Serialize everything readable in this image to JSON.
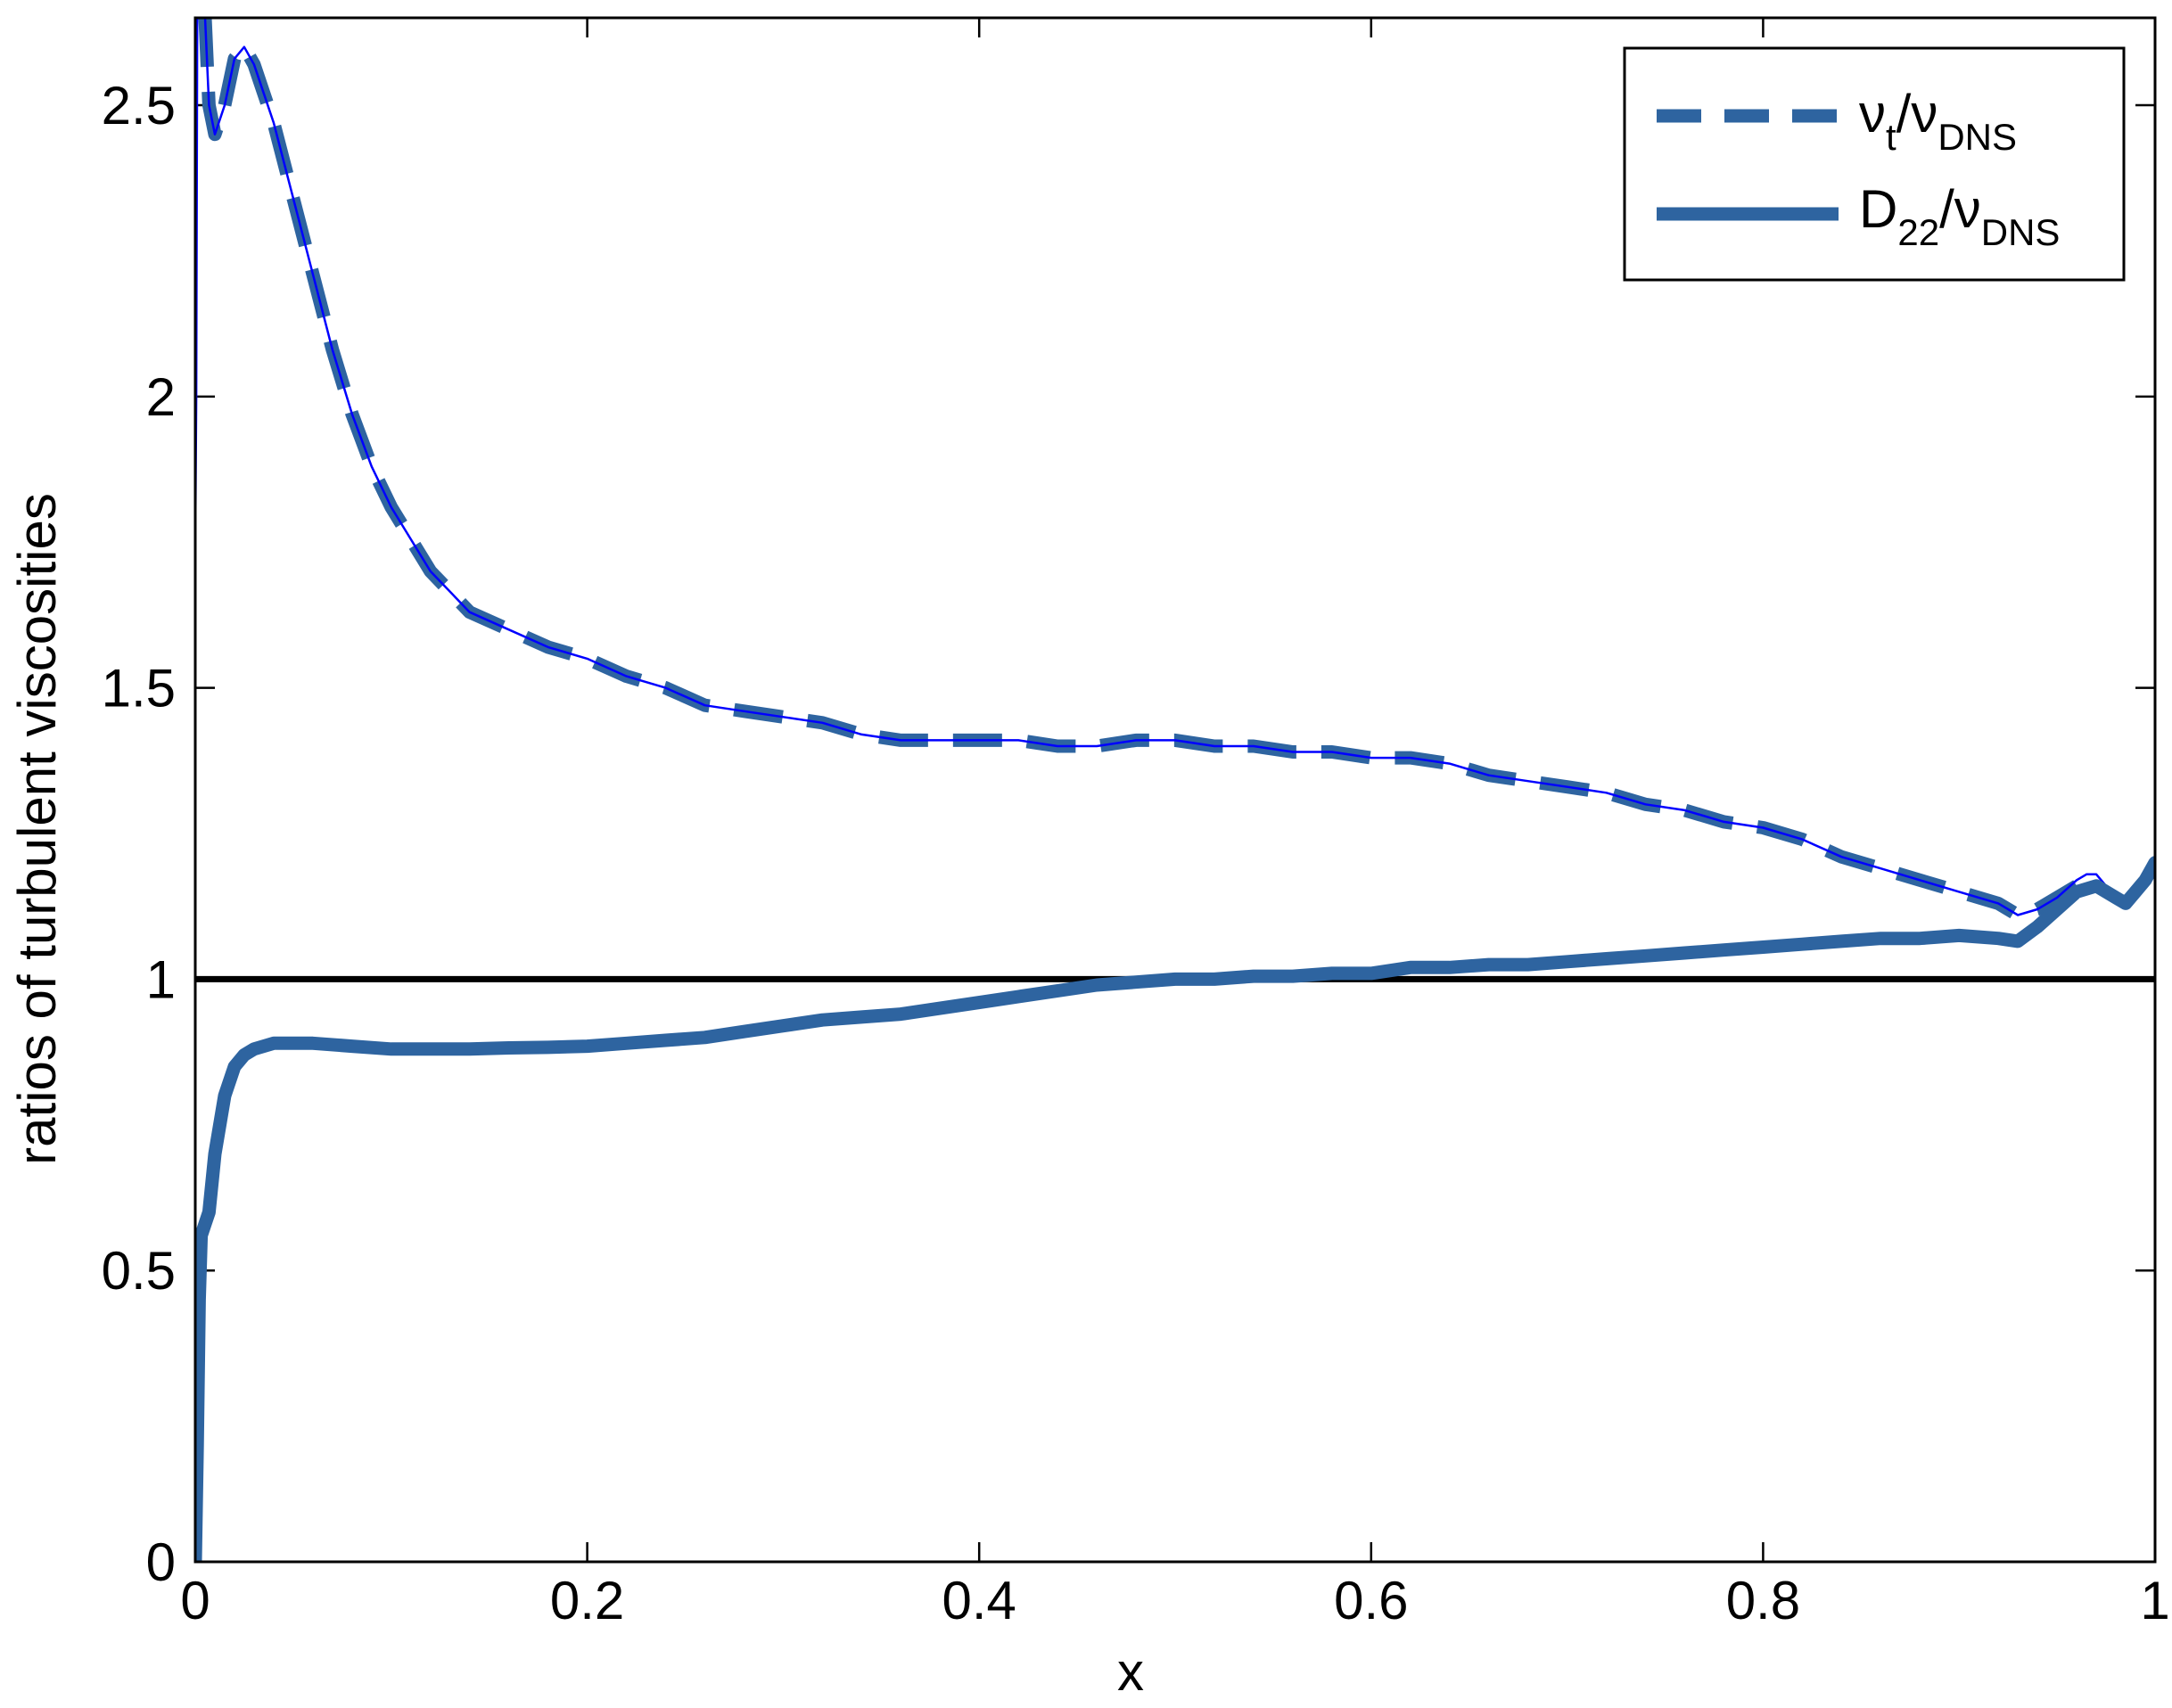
{
  "chart_data": {
    "type": "line",
    "xlabel": "x",
    "ylabel": "ratios of turbulent viscosities",
    "xlim": [
      0,
      1
    ],
    "ylim": [
      0,
      2.65
    ],
    "x_ticks": [
      0,
      0.2,
      0.4,
      0.6,
      0.8,
      1
    ],
    "x_tick_labels": [
      "0",
      "0.2",
      "0.4",
      "0.6",
      "0.8",
      "1"
    ],
    "y_ticks": [
      0,
      0.5,
      1,
      1.5,
      2,
      2.5
    ],
    "y_tick_labels": [
      "0",
      "0.5",
      "1",
      "1.5",
      "2",
      "2.5"
    ],
    "grid": false,
    "legend_position": "top-right",
    "legend": [
      {
        "base": "ν",
        "sub1": "t",
        "slash": "/",
        "base2": "ν",
        "sub2": "DNS",
        "style": "dashed"
      },
      {
        "base": "D",
        "sub1": "22",
        "slash": "/",
        "base2": "ν",
        "sub2": "DNS",
        "style": "solid"
      }
    ],
    "reference_line": {
      "y": 1,
      "color": "#000000"
    },
    "series": [
      {
        "style": "dashed",
        "color": "#2e64a0",
        "x": [
          0.005,
          0.007,
          0.01,
          0.015,
          0.02,
          0.025,
          0.03,
          0.04,
          0.05,
          0.06,
          0.07,
          0.08,
          0.09,
          0.1,
          0.12,
          0.14,
          0.16,
          0.18,
          0.2,
          0.22,
          0.24,
          0.26,
          0.28,
          0.3,
          0.32,
          0.34,
          0.36,
          0.38,
          0.4,
          0.42,
          0.44,
          0.46,
          0.48,
          0.5,
          0.52,
          0.54,
          0.56,
          0.58,
          0.6,
          0.62,
          0.64,
          0.66,
          0.68,
          0.7,
          0.72,
          0.74,
          0.76,
          0.78,
          0.8,
          0.82,
          0.84,
          0.86,
          0.88,
          0.9,
          0.92,
          0.93,
          0.94,
          0.95,
          0.96
        ],
        "y": [
          2.65,
          2.5,
          2.45,
          2.5,
          2.58,
          2.6,
          2.57,
          2.47,
          2.34,
          2.21,
          2.08,
          1.97,
          1.88,
          1.81,
          1.7,
          1.63,
          1.6,
          1.57,
          1.55,
          1.52,
          1.5,
          1.47,
          1.46,
          1.45,
          1.44,
          1.42,
          1.41,
          1.41,
          1.41,
          1.41,
          1.4,
          1.4,
          1.41,
          1.41,
          1.4,
          1.4,
          1.39,
          1.39,
          1.38,
          1.38,
          1.37,
          1.35,
          1.34,
          1.33,
          1.32,
          1.3,
          1.29,
          1.27,
          1.26,
          1.24,
          1.21,
          1.19,
          1.17,
          1.15,
          1.13,
          1.11,
          1.12,
          1.14,
          1.16
        ]
      },
      {
        "style": "thin",
        "color": "#0000ff",
        "x": [
          0,
          0.0005,
          0.001,
          0.003,
          0.005,
          0.007,
          0.01,
          0.015,
          0.02,
          0.025,
          0.03,
          0.04,
          0.05,
          0.06,
          0.07,
          0.08,
          0.09,
          0.1,
          0.12,
          0.14,
          0.16,
          0.18,
          0.2,
          0.22,
          0.24,
          0.26,
          0.28,
          0.3,
          0.32,
          0.34,
          0.36,
          0.38,
          0.4,
          0.42,
          0.44,
          0.46,
          0.48,
          0.5,
          0.52,
          0.54,
          0.56,
          0.58,
          0.6,
          0.62,
          0.64,
          0.66,
          0.68,
          0.7,
          0.72,
          0.74,
          0.76,
          0.78,
          0.8,
          0.82,
          0.84,
          0.86,
          0.88,
          0.9,
          0.92,
          0.93,
          0.94,
          0.95,
          0.96,
          0.965,
          0.97,
          0.975,
          0.98,
          0.985,
          0.99,
          0.995,
          1.0
        ],
        "y": [
          1.75,
          2.0,
          2.65,
          2.65,
          2.65,
          2.5,
          2.45,
          2.5,
          2.58,
          2.6,
          2.57,
          2.47,
          2.34,
          2.21,
          2.08,
          1.97,
          1.88,
          1.81,
          1.7,
          1.63,
          1.6,
          1.57,
          1.55,
          1.52,
          1.5,
          1.47,
          1.46,
          1.45,
          1.44,
          1.42,
          1.41,
          1.41,
          1.41,
          1.41,
          1.4,
          1.4,
          1.41,
          1.41,
          1.4,
          1.4,
          1.39,
          1.39,
          1.38,
          1.38,
          1.37,
          1.35,
          1.34,
          1.33,
          1.32,
          1.3,
          1.29,
          1.27,
          1.26,
          1.24,
          1.21,
          1.19,
          1.17,
          1.15,
          1.13,
          1.11,
          1.12,
          1.14,
          1.17,
          1.18,
          1.18,
          1.16,
          1.15,
          1.14,
          1.16,
          1.18,
          1.2
        ]
      },
      {
        "style": "solid",
        "color": "#2e64a0",
        "x": [
          0,
          0.001,
          0.002,
          0.003,
          0.005,
          0.007,
          0.01,
          0.015,
          0.02,
          0.025,
          0.03,
          0.04,
          0.05,
          0.06,
          0.08,
          0.1,
          0.12,
          0.14,
          0.16,
          0.18,
          0.2,
          0.22,
          0.24,
          0.26,
          0.28,
          0.3,
          0.32,
          0.34,
          0.36,
          0.38,
          0.4,
          0.42,
          0.44,
          0.46,
          0.48,
          0.5,
          0.52,
          0.54,
          0.56,
          0.58,
          0.6,
          0.62,
          0.64,
          0.66,
          0.68,
          0.7,
          0.72,
          0.74,
          0.76,
          0.78,
          0.8,
          0.82,
          0.84,
          0.86,
          0.88,
          0.9,
          0.92,
          0.93,
          0.94,
          0.95,
          0.96,
          0.97,
          0.98,
          0.985,
          0.99,
          0.995,
          1.0
        ],
        "y": [
          0.0,
          0.2,
          0.45,
          0.56,
          0.58,
          0.6,
          0.7,
          0.8,
          0.85,
          0.87,
          0.88,
          0.89,
          0.89,
          0.89,
          0.885,
          0.88,
          0.88,
          0.88,
          0.882,
          0.883,
          0.885,
          0.89,
          0.895,
          0.9,
          0.91,
          0.92,
          0.93,
          0.935,
          0.94,
          0.95,
          0.96,
          0.97,
          0.98,
          0.99,
          0.995,
          1.0,
          1.0,
          1.005,
          1.005,
          1.01,
          1.01,
          1.02,
          1.02,
          1.025,
          1.025,
          1.03,
          1.035,
          1.04,
          1.045,
          1.05,
          1.055,
          1.06,
          1.065,
          1.07,
          1.07,
          1.075,
          1.07,
          1.065,
          1.09,
          1.12,
          1.15,
          1.16,
          1.14,
          1.13,
          1.15,
          1.17,
          1.2
        ]
      }
    ]
  }
}
